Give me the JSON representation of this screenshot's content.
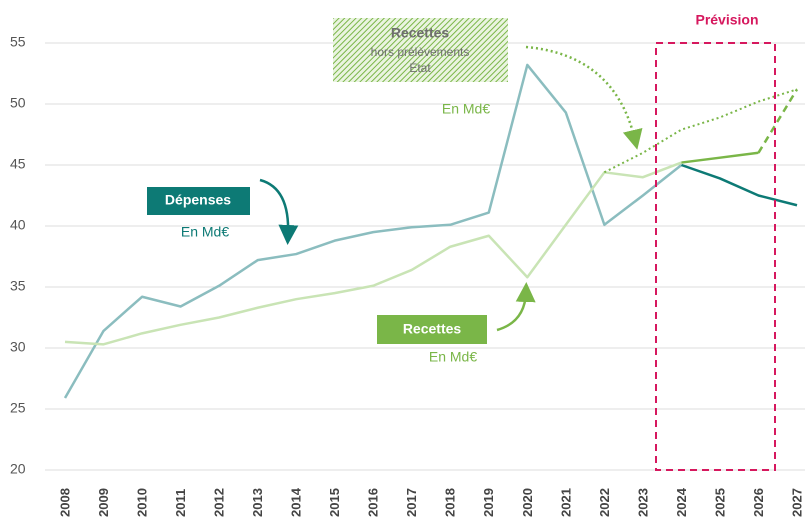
{
  "chart_data": {
    "type": "line",
    "x": [
      2008,
      2009,
      2010,
      2011,
      2012,
      2013,
      2014,
      2015,
      2016,
      2017,
      2018,
      2019,
      2020,
      2021,
      2022,
      2023,
      2024,
      2025,
      2026,
      2027
    ],
    "xticks": [
      2008,
      2009,
      2010,
      2011,
      2012,
      2013,
      2014,
      2015,
      2016,
      2017,
      2018,
      2019,
      2020,
      2021,
      2022,
      2023,
      2024,
      2025,
      2026,
      2027
    ],
    "xlim": [
      2008,
      2027
    ],
    "ylim": [
      20,
      55
    ],
    "yticks": [
      20,
      25,
      30,
      35,
      40,
      45,
      50,
      55
    ],
    "grid": true,
    "series": [
      {
        "values": [
          25.9,
          31.4,
          34.2,
          33.4,
          35.1,
          37.2,
          37.7,
          38.8,
          39.5,
          39.9,
          40.1,
          41.1,
          53.2,
          49.3,
          40.1,
          42.5,
          45.0,
          43.9,
          42.5,
          41.7
        ],
        "segments": [
          {
            "from": 2008,
            "to": 2024,
            "color": "#8bbdbf",
            "style": "solid"
          },
          {
            "from": 2024,
            "to": 2027,
            "color": "#0d7a75",
            "style": "solid"
          }
        ]
      },
      {
        "values": [
          30.5,
          30.3,
          31.2,
          31.9,
          32.5,
          33.3,
          34.0,
          34.5,
          35.1,
          36.4,
          38.3,
          39.2,
          35.8,
          40.1,
          44.4,
          44.0,
          45.2,
          45.6,
          46.0,
          51.2
        ],
        "segments": [
          {
            "from": 2008,
            "to": 2024,
            "color": "#c9e4b5",
            "style": "solid"
          },
          {
            "from": 2024,
            "to": 2026,
            "color": "#7ab648",
            "style": "solid"
          },
          {
            "from": 2026,
            "to": 2027,
            "color": "#7ab648",
            "style": "dashed"
          }
        ]
      },
      {
        "values": [
          null,
          null,
          null,
          null,
          null,
          null,
          null,
          null,
          null,
          null,
          null,
          null,
          null,
          null,
          44.4,
          46.0,
          47.9,
          48.9,
          50.2,
          51.2
        ],
        "segments": [
          {
            "from": 2022,
            "to": 2027,
            "color": "#7ab648",
            "style": "dotted"
          }
        ]
      }
    ],
    "annotations": {
      "forecast": "Prévision",
      "depenses": {
        "label": "Dépenses",
        "unit": "En Md€"
      },
      "recettes": {
        "label": "Recettes",
        "unit": "En Md€"
      },
      "recettes_hp": {
        "label": "Recettes",
        "line2": "hors prélèvements",
        "line3": "État",
        "unit": "En Md€"
      }
    }
  }
}
